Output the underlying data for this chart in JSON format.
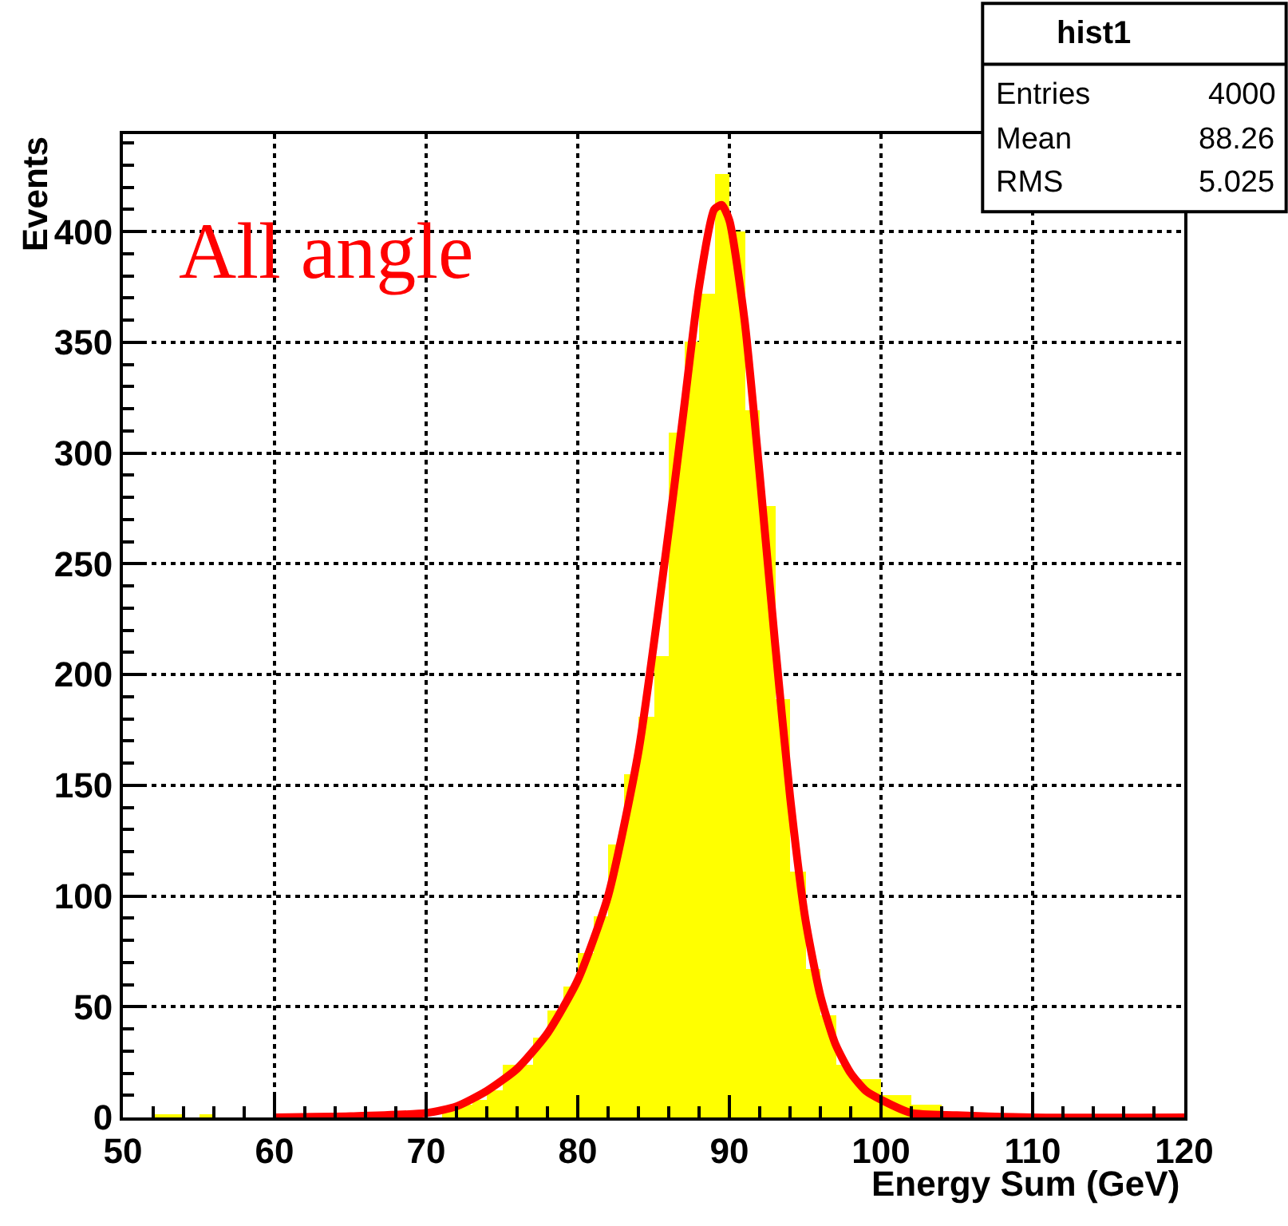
{
  "chart_data": {
    "type": "histogram",
    "xlabel": "Energy Sum (GeV)",
    "ylabel": "Events",
    "bins": [
      50,
      51,
      52,
      53,
      54,
      55,
      56,
      57,
      58,
      59,
      60,
      61,
      62,
      63,
      64,
      65,
      66,
      67,
      68,
      69,
      70,
      71,
      72,
      73,
      74,
      75,
      76,
      77,
      78,
      79,
      80,
      81,
      82,
      83,
      84,
      85,
      86,
      87,
      88,
      89,
      90,
      91,
      92,
      93,
      94,
      95,
      96,
      97,
      98,
      99,
      100,
      101,
      102,
      103,
      104,
      105,
      106,
      107,
      108,
      109,
      110,
      111,
      112,
      113,
      114,
      115,
      116,
      117,
      118,
      119,
      120
    ],
    "values": [
      0,
      0,
      1,
      1,
      0,
      1,
      0,
      0,
      0,
      0,
      0,
      0,
      0,
      1,
      0,
      1,
      1,
      0,
      1,
      null,
      null,
      3,
      6,
      8,
      12,
      24,
      24,
      36,
      48,
      59,
      74,
      91,
      123,
      155,
      181,
      208,
      309,
      350,
      372,
      426,
      400,
      319,
      276,
      189,
      111,
      67,
      46,
      24,
      17,
      17,
      10,
      10,
      6,
      6,
      null,
      1,
      1,
      1,
      0,
      1,
      0,
      0,
      0,
      0,
      0,
      0,
      0,
      0,
      0,
      0
    ],
    "color": "#ffff00",
    "series": [
      {
        "type": "line",
        "color": "#ff0000",
        "x": [
          60,
          65,
          70,
          72,
          74,
          76,
          78,
          80,
          82,
          84,
          86,
          87,
          88,
          89,
          89.5,
          90,
          91,
          92,
          93,
          94,
          95,
          96,
          97,
          98,
          99,
          100,
          102,
          105,
          110,
          120
        ],
        "values": [
          0,
          0.5,
          2,
          5,
          12,
          22,
          38,
          62,
          100,
          165,
          265,
          320,
          375,
          410,
          412,
          405,
          360,
          290,
          215,
          145,
          90,
          55,
          33,
          20,
          12,
          8,
          2,
          1,
          0,
          0
        ]
      }
    ],
    "xlim": [
      50,
      120
    ],
    "xticks": [
      50,
      60,
      70,
      80,
      90,
      100,
      110,
      120
    ],
    "ylim": [
      0,
      444
    ],
    "yticks": [
      0,
      50,
      100,
      150,
      200,
      250,
      300,
      350,
      400
    ],
    "grid": true,
    "annotations": [
      "All angle",
      "hist1",
      "Entries",
      "4000",
      "Mean",
      "88.26",
      "RMS",
      "5.025"
    ]
  }
}
